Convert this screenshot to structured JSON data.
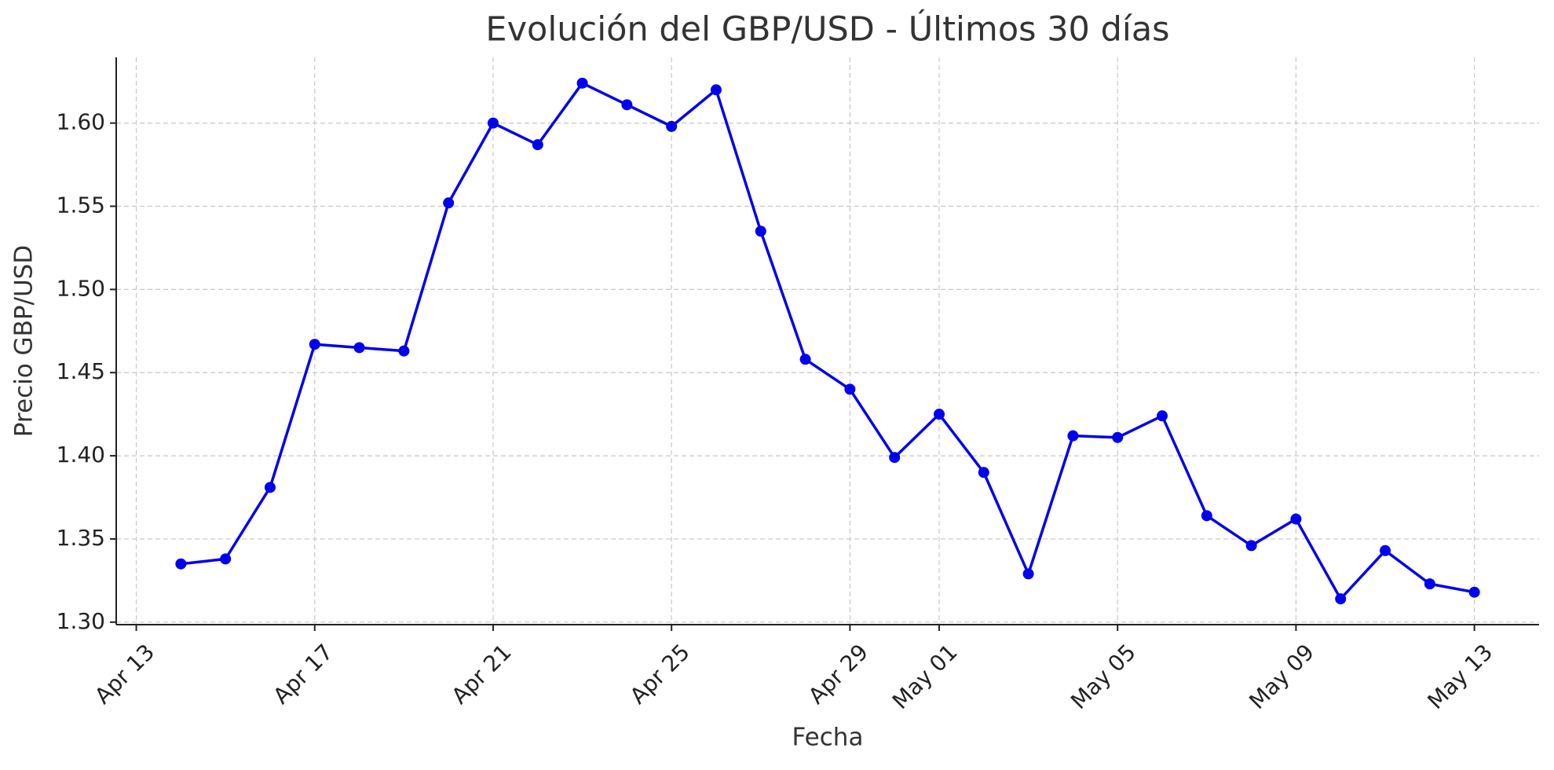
{
  "chart_data": {
    "type": "line",
    "title": "Evolución del GBP/USD - Últimos 30 días",
    "x_label": "Fecha",
    "y_label": "Precio GBP/USD",
    "x": [
      "Apr 14",
      "Apr 15",
      "Apr 16",
      "Apr 17",
      "Apr 18",
      "Apr 19",
      "Apr 20",
      "Apr 21",
      "Apr 22",
      "Apr 23",
      "Apr 24",
      "Apr 25",
      "Apr 26",
      "Apr 27",
      "Apr 28",
      "Apr 29",
      "Apr 30",
      "May 01",
      "May 02",
      "May 03",
      "May 04",
      "May 05",
      "May 06",
      "May 07",
      "May 08",
      "May 09",
      "May 10",
      "May 11",
      "May 12",
      "May 13"
    ],
    "values": [
      1.335,
      1.338,
      1.381,
      1.467,
      1.465,
      1.463,
      1.552,
      1.6,
      1.587,
      1.624,
      1.611,
      1.598,
      1.62,
      1.535,
      1.458,
      1.44,
      1.399,
      1.425,
      1.39,
      1.329,
      1.412,
      1.411,
      1.424,
      1.364,
      1.346,
      1.362,
      1.314,
      1.343,
      1.323,
      1.318
    ],
    "color": "#0000ee",
    "xticks": [
      "Apr 13",
      "Apr 17",
      "Apr 21",
      "Apr 25",
      "Apr 29",
      "May 01",
      "May 05",
      "May 09",
      "May 13"
    ],
    "ylim": [
      1.2985,
      1.6395
    ],
    "yticks": [
      {
        "value": 1.3,
        "label": "1.30"
      },
      {
        "value": 1.35,
        "label": "1.35"
      },
      {
        "value": 1.4,
        "label": "1.40"
      },
      {
        "value": 1.45,
        "label": "1.45"
      },
      {
        "value": 1.5,
        "label": "1.50"
      },
      {
        "value": 1.55,
        "label": "1.55"
      },
      {
        "value": 1.6,
        "label": "1.60"
      }
    ],
    "grid": true
  }
}
